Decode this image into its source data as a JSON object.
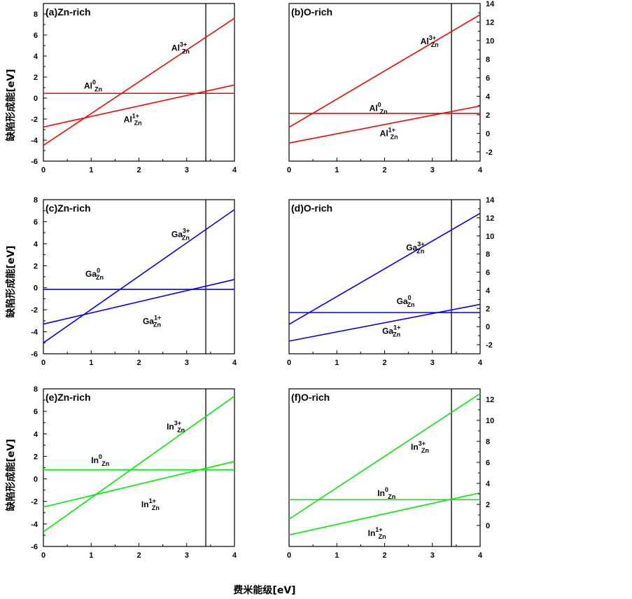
{
  "figure": {
    "ylabel": "缺陷形成能[eV]",
    "xlabel": "费米能级[eV]"
  },
  "chart_data": [
    {
      "type": "line",
      "title": "(a)Zn-rich",
      "xlim": [
        0,
        4
      ],
      "ylim": [
        -6,
        9
      ],
      "xticks": [
        0,
        1,
        2,
        3,
        4
      ],
      "yticks": [
        -6,
        -4,
        -2,
        0,
        2,
        4,
        6,
        8
      ],
      "y_axis_side": "left",
      "vline_x": 3.4,
      "color": "#ff0000",
      "series": [
        {
          "base": "Al",
          "sub": "Zn",
          "sup": "0",
          "x": [
            0,
            4
          ],
          "y": [
            0.45,
            0.45
          ],
          "label_at": [
            0.85,
            0.9
          ]
        },
        {
          "base": "Al",
          "sub": "Zn",
          "sup": "1+",
          "x": [
            0,
            4
          ],
          "y": [
            -2.75,
            1.25
          ],
          "label_at": [
            1.68,
            -2.3
          ]
        },
        {
          "base": "Al",
          "sub": "Zn",
          "sup": "3+",
          "x": [
            0,
            4
          ],
          "y": [
            -4.5,
            7.6
          ],
          "label_at": [
            2.68,
            4.5
          ]
        }
      ]
    },
    {
      "type": "line",
      "title": "(b)O-rich",
      "xlim": [
        0,
        4
      ],
      "ylim": [
        -3,
        14
      ],
      "xticks": [
        0,
        1,
        2,
        3,
        4
      ],
      "yticks": [
        -2,
        0,
        2,
        4,
        6,
        8,
        10,
        12,
        14
      ],
      "y_axis_side": "right",
      "vline_x": 3.4,
      "color": "#ff0000",
      "series": [
        {
          "base": "Al",
          "sub": "Zn",
          "sup": "0",
          "x": [
            0,
            4
          ],
          "y": [
            2.15,
            2.15
          ],
          "label_at": [
            1.68,
            2.4
          ]
        },
        {
          "base": "Al",
          "sub": "Zn",
          "sup": "1+",
          "x": [
            0,
            4
          ],
          "y": [
            -1.05,
            2.95
          ],
          "label_at": [
            1.9,
            -0.3
          ]
        },
        {
          "base": "Al",
          "sub": "Zn",
          "sup": "3+",
          "x": [
            0,
            4
          ],
          "y": [
            0.65,
            12.8
          ],
          "label_at": [
            2.75,
            9.6
          ]
        }
      ]
    },
    {
      "type": "line",
      "title": "(c)Zn-rich",
      "xlim": [
        0,
        4
      ],
      "ylim": [
        -6,
        8
      ],
      "xticks": [
        0,
        1,
        2,
        3,
        4
      ],
      "yticks": [
        -6,
        -4,
        -2,
        0,
        2,
        4,
        6,
        8
      ],
      "y_axis_side": "left",
      "vline_x": 3.4,
      "color": "#0000ff",
      "series": [
        {
          "base": "Ga",
          "sub": "Zn",
          "sup": "0",
          "x": [
            0,
            4
          ],
          "y": [
            -0.15,
            -0.15
          ],
          "label_at": [
            0.88,
            1.0
          ]
        },
        {
          "base": "Ga",
          "sub": "Zn",
          "sup": "1+",
          "x": [
            0,
            4
          ],
          "y": [
            -3.3,
            0.75
          ],
          "label_at": [
            2.08,
            -3.3
          ]
        },
        {
          "base": "Ga",
          "sub": "Zn",
          "sup": "3+",
          "x": [
            0,
            4
          ],
          "y": [
            -5.0,
            7.1
          ],
          "label_at": [
            2.68,
            4.6
          ]
        }
      ]
    },
    {
      "type": "line",
      "title": "(d)O-rich",
      "xlim": [
        0,
        4
      ],
      "ylim": [
        -3,
        14
      ],
      "xticks": [
        0,
        1,
        2,
        3,
        4
      ],
      "yticks": [
        -2,
        0,
        2,
        4,
        6,
        8,
        10,
        12,
        14
      ],
      "y_axis_side": "right",
      "vline_x": 3.4,
      "color": "#0000ff",
      "series": [
        {
          "base": "Ga",
          "sub": "Zn",
          "sup": "0",
          "x": [
            0,
            4
          ],
          "y": [
            1.55,
            1.55
          ],
          "label_at": [
            2.25,
            2.5
          ]
        },
        {
          "base": "Ga",
          "sub": "Zn",
          "sup": "1+",
          "x": [
            0,
            4
          ],
          "y": [
            -1.6,
            2.45
          ],
          "label_at": [
            1.95,
            -0.8
          ]
        },
        {
          "base": "Ga",
          "sub": "Zn",
          "sup": "3+",
          "x": [
            0,
            4
          ],
          "y": [
            0.25,
            12.5
          ],
          "label_at": [
            2.45,
            8.4
          ]
        }
      ]
    },
    {
      "type": "line",
      "title": "(e)Zn-rich",
      "xlim": [
        0,
        4
      ],
      "ylim": [
        -6,
        8
      ],
      "xticks": [
        0,
        1,
        2,
        3,
        4
      ],
      "yticks": [
        -6,
        -4,
        -2,
        0,
        2,
        4,
        6,
        8
      ],
      "y_axis_side": "left",
      "vline_x": 3.4,
      "color": "#00ee00",
      "series": [
        {
          "base": "In",
          "sub": "Zn",
          "sup": "0",
          "x": [
            0,
            4
          ],
          "y": [
            0.8,
            0.8
          ],
          "label_at": [
            1.0,
            1.4
          ]
        },
        {
          "base": "In",
          "sub": "Zn",
          "sup": "1+",
          "x": [
            0,
            4
          ],
          "y": [
            -2.5,
            1.55
          ],
          "label_at": [
            2.05,
            -2.5
          ]
        },
        {
          "base": "In",
          "sub": "Zn",
          "sup": "3+",
          "x": [
            0,
            4
          ],
          "y": [
            -4.7,
            7.35
          ],
          "label_at": [
            2.58,
            4.4
          ]
        }
      ]
    },
    {
      "type": "line",
      "title": "(f)O-rich",
      "xlim": [
        0,
        4
      ],
      "ylim": [
        -2,
        13
      ],
      "xticks": [
        0,
        1,
        2,
        3,
        4
      ],
      "yticks": [
        0,
        2,
        4,
        6,
        8,
        10,
        12
      ],
      "y_axis_side": "right",
      "vline_x": 3.4,
      "color": "#00ee00",
      "series": [
        {
          "base": "In",
          "sub": "Zn",
          "sup": "0",
          "x": [
            0,
            4
          ],
          "y": [
            2.45,
            2.45
          ],
          "label_at": [
            1.85,
            2.8
          ]
        },
        {
          "base": "In",
          "sub": "Zn",
          "sup": "1+",
          "x": [
            0,
            4
          ],
          "y": [
            -0.9,
            3.1
          ],
          "label_at": [
            1.65,
            -1.0
          ]
        },
        {
          "base": "In",
          "sub": "Zn",
          "sup": "3+",
          "x": [
            0,
            4
          ],
          "y": [
            0.6,
            12.55
          ],
          "label_at": [
            2.55,
            7.2
          ]
        }
      ]
    }
  ]
}
